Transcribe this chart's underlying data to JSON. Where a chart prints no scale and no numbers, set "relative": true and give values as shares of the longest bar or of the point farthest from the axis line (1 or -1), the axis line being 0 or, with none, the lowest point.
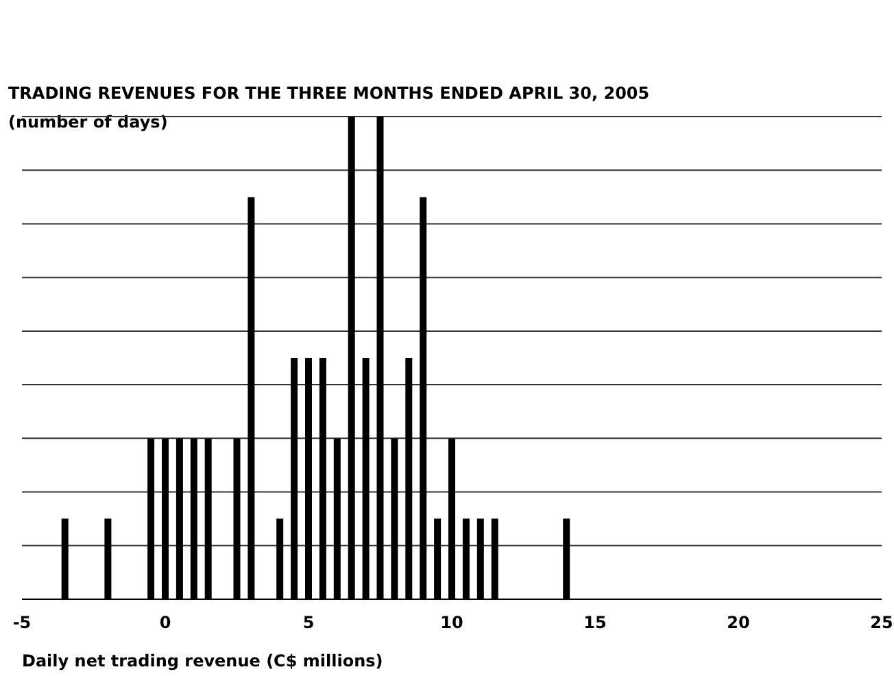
{
  "chart_data": {
    "type": "bar",
    "title": "TRADING REVENUES FOR THE THREE MONTHS ENDED APRIL 30, 2005",
    "subtitle": "(number of days)",
    "xlabel": "Daily net trading revenue (C$ millions)",
    "relative": true,
    "color": "#000000",
    "grid": "y",
    "x": [
      -3.5,
      -2,
      -0.5,
      0,
      0.5,
      1,
      1.5,
      2.5,
      3,
      4,
      4.5,
      5,
      5.5,
      6,
      6.5,
      7,
      7.5,
      8,
      8.5,
      9,
      9.5,
      10,
      10.5,
      11,
      11.5,
      14
    ],
    "values": [
      0.167,
      0.167,
      0.333,
      0.333,
      0.333,
      0.333,
      0.333,
      0.333,
      0.833,
      0.167,
      0.5,
      0.5,
      0.5,
      0.333,
      1,
      0.5,
      1,
      0.333,
      0.5,
      0.833,
      0.167,
      0.333,
      0.167,
      0.167,
      0.167,
      0.167
    ],
    "xlim": [
      -5,
      25
    ],
    "xticks": [
      -5,
      0,
      5,
      10,
      15,
      20,
      25
    ]
  }
}
